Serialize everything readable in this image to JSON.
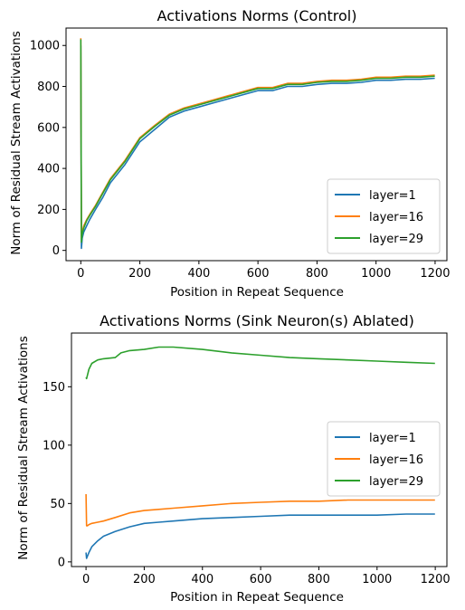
{
  "chart_data": [
    {
      "type": "line",
      "title": "Activations Norms (Control)",
      "xlabel": "Position in Repeat Sequence",
      "ylabel": "Norm of Residual Stream Activations",
      "xlim": [
        -50,
        1240
      ],
      "ylim": [
        -50,
        1085
      ],
      "xticks": [
        0,
        200,
        400,
        600,
        800,
        1000,
        1200
      ],
      "yticks": [
        0,
        200,
        400,
        600,
        800,
        1000
      ],
      "legend": "lower-right",
      "series": [
        {
          "name": "layer=1",
          "color": "#1f77b4",
          "x": [
            0,
            2,
            5,
            10,
            20,
            30,
            50,
            75,
            100,
            150,
            200,
            250,
            300,
            350,
            400,
            450,
            500,
            550,
            600,
            650,
            700,
            750,
            800,
            850,
            900,
            950,
            1000,
            1050,
            1100,
            1150,
            1199
          ],
          "y": [
            1000,
            10,
            60,
            90,
            120,
            150,
            200,
            260,
            330,
            420,
            530,
            590,
            650,
            680,
            700,
            720,
            740,
            760,
            780,
            780,
            800,
            800,
            810,
            815,
            815,
            820,
            830,
            830,
            835,
            835,
            840
          ]
        },
        {
          "name": "layer=16",
          "color": "#ff7f0e",
          "x": [
            0,
            2,
            5,
            10,
            20,
            30,
            50,
            75,
            100,
            150,
            200,
            250,
            300,
            350,
            400,
            450,
            500,
            550,
            600,
            650,
            700,
            750,
            800,
            850,
            900,
            950,
            1000,
            1050,
            1100,
            1150,
            1199
          ],
          "y": [
            1035,
            60,
            90,
            120,
            150,
            175,
            220,
            285,
            350,
            440,
            550,
            610,
            665,
            695,
            715,
            735,
            755,
            775,
            795,
            795,
            815,
            815,
            825,
            830,
            830,
            835,
            845,
            845,
            850,
            850,
            855
          ]
        },
        {
          "name": "layer=29",
          "color": "#2ca02c",
          "x": [
            0,
            2,
            5,
            10,
            20,
            30,
            50,
            75,
            100,
            150,
            200,
            250,
            300,
            350,
            400,
            450,
            500,
            550,
            600,
            650,
            700,
            750,
            800,
            850,
            900,
            950,
            1000,
            1050,
            1100,
            1150,
            1199
          ],
          "y": [
            1030,
            40,
            80,
            110,
            145,
            170,
            215,
            280,
            345,
            435,
            545,
            605,
            660,
            690,
            710,
            730,
            750,
            770,
            790,
            790,
            810,
            810,
            820,
            825,
            825,
            830,
            840,
            840,
            845,
            845,
            850
          ]
        }
      ]
    },
    {
      "type": "line",
      "title": "Activations Norms (Sink Neuron(s) Ablated)",
      "xlabel": "Position in Repeat Sequence",
      "ylabel": "Norm of Residual Stream Activations",
      "xlim": [
        -50,
        1240
      ],
      "ylim": [
        -4,
        196
      ],
      "xticks": [
        0,
        200,
        400,
        600,
        800,
        1000,
        1200
      ],
      "yticks": [
        0,
        50,
        100,
        150
      ],
      "legend": "center-right",
      "series": [
        {
          "name": "layer=1",
          "color": "#1f77b4",
          "x": [
            0,
            2,
            5,
            10,
            20,
            40,
            60,
            100,
            150,
            200,
            250,
            300,
            400,
            500,
            600,
            700,
            800,
            900,
            1000,
            1100,
            1199
          ],
          "y": [
            8,
            3,
            5,
            8,
            13,
            18,
            22,
            26,
            30,
            33,
            34,
            35,
            37,
            38,
            39,
            40,
            40,
            40,
            40,
            41,
            41
          ]
        },
        {
          "name": "layer=16",
          "color": "#ff7f0e",
          "x": [
            0,
            2,
            5,
            10,
            20,
            40,
            60,
            100,
            150,
            200,
            250,
            300,
            400,
            500,
            600,
            700,
            800,
            900,
            1000,
            1100,
            1199
          ],
          "y": [
            58,
            31,
            31,
            32,
            33,
            34,
            35,
            38,
            42,
            44,
            45,
            46,
            48,
            50,
            51,
            52,
            52,
            53,
            53,
            53,
            53
          ]
        },
        {
          "name": "layer=29",
          "color": "#2ca02c",
          "x": [
            0,
            2,
            5,
            10,
            20,
            40,
            60,
            100,
            120,
            150,
            200,
            250,
            300,
            400,
            500,
            600,
            700,
            800,
            900,
            1000,
            1100,
            1199
          ],
          "y": [
            158,
            157,
            160,
            165,
            170,
            173,
            174,
            175,
            179,
            181,
            182,
            184,
            184,
            182,
            179,
            177,
            175,
            174,
            173,
            172,
            171,
            170
          ]
        }
      ]
    }
  ]
}
